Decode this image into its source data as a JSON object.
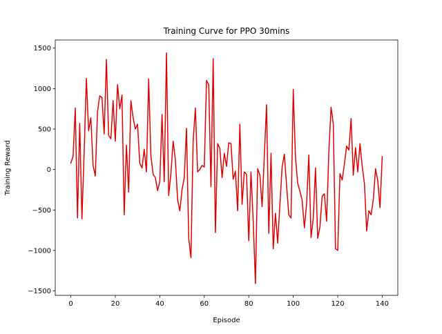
{
  "chart_data": {
    "type": "line",
    "title": "Training Curve for PPO 30mins",
    "xlabel": "Episode",
    "ylabel": "Training Reward",
    "xlim": [
      -7,
      147
    ],
    "ylim": [
      -1555,
      1600
    ],
    "xticks": [
      0,
      20,
      40,
      60,
      80,
      100,
      120,
      140
    ],
    "yticks": [
      -1500,
      -1000,
      -500,
      0,
      500,
      1000,
      1500
    ],
    "grid": false,
    "series": [
      {
        "color": "#e00000",
        "x": [
          0,
          1,
          2,
          3,
          4,
          5,
          6,
          7,
          8,
          9,
          10,
          11,
          12,
          13,
          14,
          15,
          16,
          17,
          18,
          19,
          20,
          21,
          22,
          23,
          24,
          25,
          26,
          27,
          28,
          29,
          30,
          31,
          32,
          33,
          34,
          35,
          36,
          37,
          38,
          39,
          40,
          41,
          42,
          43,
          44,
          45,
          46,
          47,
          48,
          49,
          50,
          51,
          52,
          53,
          54,
          55,
          56,
          57,
          58,
          59,
          60,
          61,
          62,
          63,
          64,
          65,
          66,
          67,
          68,
          69,
          70,
          71,
          72,
          73,
          74,
          75,
          76,
          77,
          78,
          79,
          80,
          81,
          82,
          83,
          84,
          85,
          86,
          87,
          88,
          89,
          90,
          91,
          92,
          93,
          94,
          95,
          96,
          97,
          98,
          99,
          100,
          101,
          102,
          103,
          104,
          105,
          106,
          107,
          108,
          109,
          110,
          111,
          112,
          113,
          114,
          115,
          116,
          117,
          118,
          119,
          120,
          121,
          122,
          123,
          124,
          125,
          126,
          127,
          128,
          129,
          130,
          131,
          132,
          133,
          134,
          135,
          136,
          137,
          138,
          139,
          140
        ],
        "y": [
          80,
          160,
          760,
          -600,
          570,
          -610,
          220,
          1125,
          480,
          640,
          50,
          -80,
          710,
          910,
          890,
          440,
          1360,
          420,
          380,
          850,
          350,
          1050,
          750,
          920,
          -560,
          300,
          -280,
          850,
          640,
          500,
          560,
          80,
          20,
          250,
          -30,
          1120,
          170,
          -60,
          -100,
          -260,
          -150,
          680,
          -150,
          1440,
          -320,
          -50,
          350,
          120,
          -370,
          -510,
          -250,
          -100,
          510,
          -850,
          -1090,
          350,
          760,
          -30,
          0,
          50,
          30,
          1100,
          1050,
          -210,
          1370,
          -780,
          320,
          260,
          -100,
          200,
          40,
          330,
          320,
          -120,
          -20,
          -510,
          560,
          -430,
          -30,
          -60,
          -880,
          -30,
          -640,
          -1410,
          10,
          -70,
          -460,
          170,
          800,
          -790,
          200,
          -980,
          -540,
          -910,
          -430,
          30,
          190,
          -200,
          -560,
          -600,
          990,
          150,
          -170,
          -270,
          -380,
          -720,
          -420,
          180,
          -840,
          -600,
          20,
          -850,
          -710,
          -330,
          -300,
          -640,
          220,
          770,
          560,
          -980,
          -1000,
          -50,
          -130,
          70,
          290,
          240,
          630,
          -70,
          270,
          -30,
          320,
          40,
          -170,
          -760,
          -510,
          -560,
          -370,
          10,
          -140,
          -470,
          160
        ]
      }
    ]
  }
}
